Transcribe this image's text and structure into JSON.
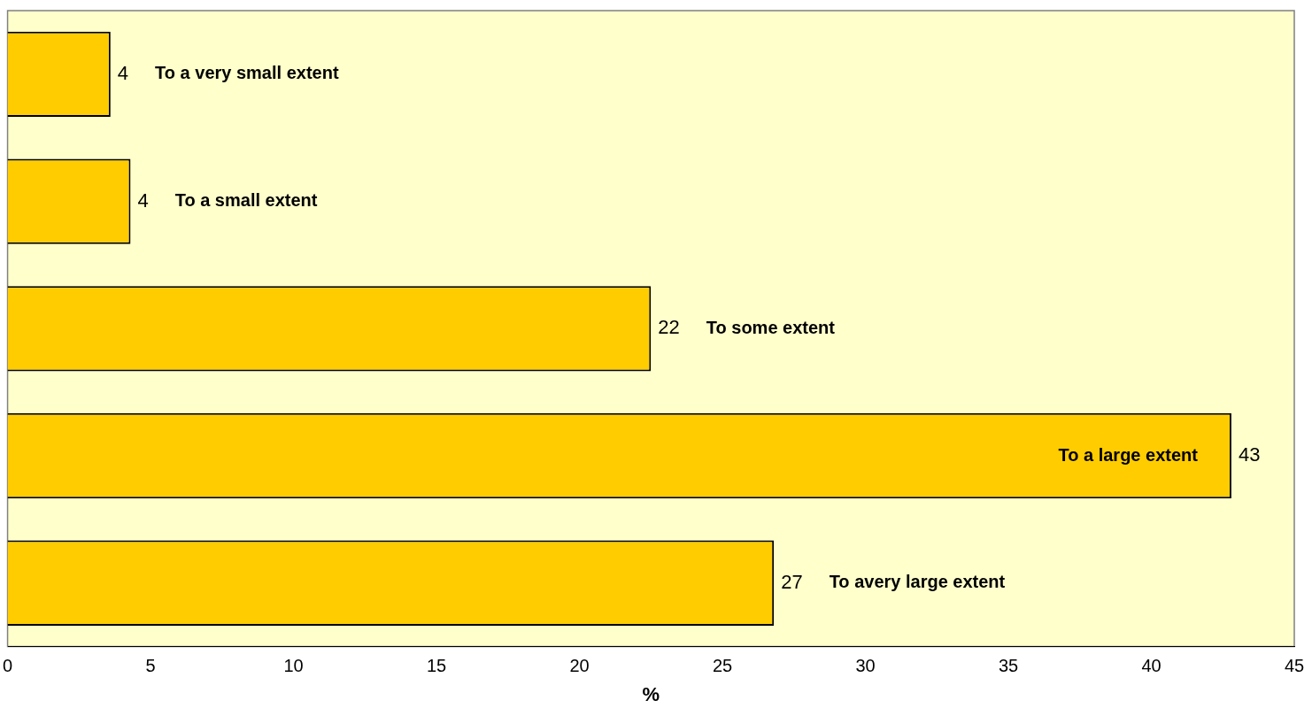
{
  "chart_data": {
    "type": "bar",
    "orientation": "horizontal",
    "xlabel": "%",
    "categories": [
      "To a very small extent",
      "To a small extent",
      "To some extent",
      "To a large extent",
      "To avery large extent"
    ],
    "values": [
      3.6,
      4.3,
      22.5,
      42.8,
      26.8
    ],
    "value_labels": [
      "4",
      "4",
      "22",
      "43",
      "27"
    ],
    "color": "#ffcc00",
    "xlim": [
      0,
      45
    ],
    "xticks": [
      0,
      5,
      10,
      15,
      20,
      25,
      30,
      35,
      40,
      45
    ]
  }
}
